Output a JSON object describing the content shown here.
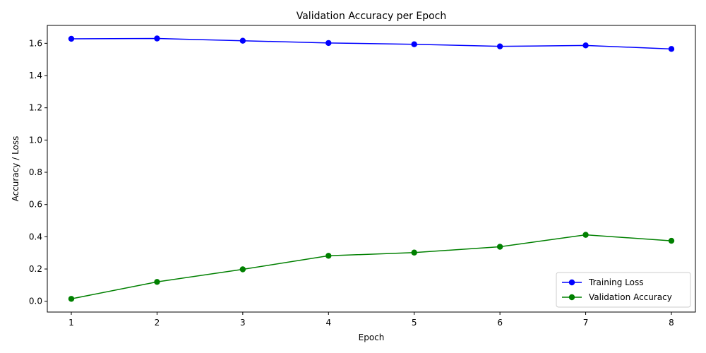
{
  "chart_data": {
    "type": "line",
    "title": "Validation Accuracy per Epoch",
    "xlabel": "Epoch",
    "ylabel": "Accuracy / Loss",
    "x": [
      1,
      2,
      3,
      4,
      5,
      6,
      7,
      8
    ],
    "xlim": [
      0.72,
      8.28
    ],
    "ylim": [
      -0.067,
      1.711
    ],
    "xticks": [
      1,
      2,
      3,
      4,
      5,
      6,
      7,
      8
    ],
    "yticks": [
      0.0,
      0.2,
      0.4,
      0.6,
      0.8,
      1.0,
      1.2,
      1.4,
      1.6
    ],
    "ytick_labels": [
      "0.0",
      "0.2",
      "0.4",
      "0.6",
      "0.8",
      "1.0",
      "1.2",
      "1.4",
      "1.6"
    ],
    "grid": false,
    "legend_position": "bottom-right",
    "series": [
      {
        "name": "Training Loss",
        "color": "#0000ff",
        "marker": "circle",
        "values": [
          1.628,
          1.63,
          1.616,
          1.602,
          1.594,
          1.581,
          1.587,
          1.565
        ]
      },
      {
        "name": "Validation Accuracy",
        "color": "#008000",
        "marker": "circle",
        "values": [
          0.015,
          0.12,
          0.198,
          0.282,
          0.302,
          0.338,
          0.412,
          0.375
        ]
      }
    ]
  }
}
